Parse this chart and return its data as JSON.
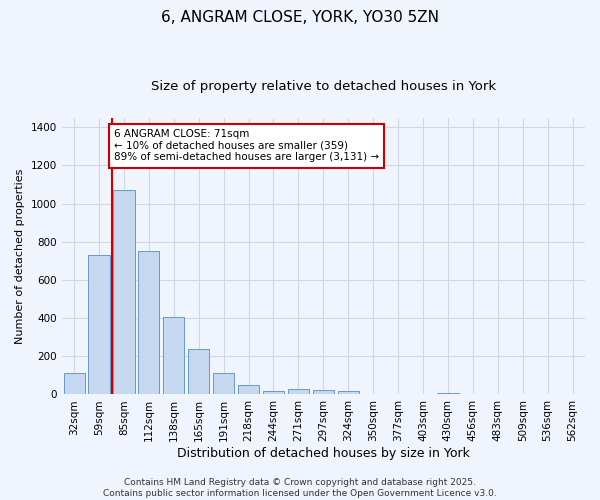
{
  "title": "6, ANGRAM CLOSE, YORK, YO30 5ZN",
  "subtitle": "Size of property relative to detached houses in York",
  "xlabel": "Distribution of detached houses by size in York",
  "ylabel": "Number of detached properties",
  "categories": [
    "32sqm",
    "59sqm",
    "85sqm",
    "112sqm",
    "138sqm",
    "165sqm",
    "191sqm",
    "218sqm",
    "244sqm",
    "271sqm",
    "297sqm",
    "324sqm",
    "350sqm",
    "377sqm",
    "403sqm",
    "430sqm",
    "456sqm",
    "483sqm",
    "509sqm",
    "536sqm",
    "562sqm"
  ],
  "values": [
    110,
    730,
    1070,
    750,
    405,
    240,
    115,
    50,
    20,
    30,
    25,
    20,
    0,
    0,
    0,
    10,
    0,
    0,
    0,
    0,
    0
  ],
  "bar_color": "#c5d8f0",
  "bar_edge_color": "#6699cc",
  "red_line_x": 1.5,
  "annotation_text": "6 ANGRAM CLOSE: 71sqm\n← 10% of detached houses are smaller (359)\n89% of semi-detached houses are larger (3,131) →",
  "annotation_box_color": "#ffffff",
  "annotation_box_edge_color": "#cc0000",
  "annotation_text_color": "#000000",
  "red_line_color": "#cc0000",
  "ylim": [
    0,
    1450
  ],
  "yticks": [
    0,
    200,
    400,
    600,
    800,
    1000,
    1200,
    1400
  ],
  "grid_color": "#d0d8e8",
  "bg_color": "#f0f4fc",
  "plot_bg_color": "#f0f4fc",
  "footer_text": "Contains HM Land Registry data © Crown copyright and database right 2025.\nContains public sector information licensed under the Open Government Licence v3.0.",
  "title_fontsize": 11,
  "subtitle_fontsize": 9.5,
  "xlabel_fontsize": 9,
  "ylabel_fontsize": 8,
  "tick_fontsize": 7.5,
  "footer_fontsize": 6.5,
  "annot_fontsize": 7.5
}
